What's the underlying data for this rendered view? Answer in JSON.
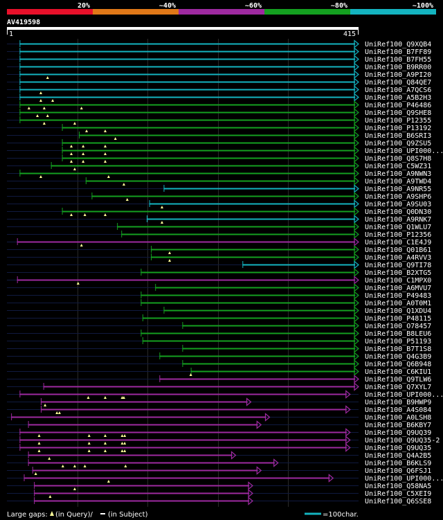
{
  "chart_data": {
    "type": "alignment-overview",
    "query": {
      "name": "AV419598",
      "start_label": "1",
      "end_label": "415",
      "length": 415
    },
    "identity_legend": [
      {
        "label": "20%",
        "color": "#e8102a"
      },
      {
        "label": "~40%",
        "color": "#e07818"
      },
      {
        "label": "~60%",
        "color": "#9e2aa0"
      },
      {
        "label": "~80%",
        "color": "#14a020"
      },
      {
        "label": "~100%",
        "color": "#14b4c0"
      }
    ],
    "hits": [
      {
        "name": "UniRef100_Q9XQB4",
        "start": 15,
        "end": 415,
        "band": 4,
        "gaps": []
      },
      {
        "name": "UniRef100_B7FF89",
        "start": 15,
        "end": 415,
        "band": 4,
        "gaps": []
      },
      {
        "name": "UniRef100_B7FH55",
        "start": 15,
        "end": 415,
        "band": 4,
        "gaps": []
      },
      {
        "name": "UniRef100_B9RR00",
        "start": 15,
        "end": 415,
        "band": 4,
        "gaps": []
      },
      {
        "name": "UniRef100_A9PI20",
        "start": 15,
        "end": 415,
        "band": 4,
        "gaps": [
          48
        ]
      },
      {
        "name": "UniRef100_Q84QE7",
        "start": 15,
        "end": 415,
        "band": 4,
        "gaps": []
      },
      {
        "name": "UniRef100_A7QCS6",
        "start": 15,
        "end": 415,
        "band": 4,
        "gaps": [
          40
        ]
      },
      {
        "name": "UniRef100_A5B2H3",
        "start": 15,
        "end": 415,
        "band": 4,
        "gaps": [
          40,
          54
        ]
      },
      {
        "name": "UniRef100_P46486",
        "start": 15,
        "end": 415,
        "band": 3,
        "gaps": [
          26,
          44,
          88
        ]
      },
      {
        "name": "UniRef100_Q9SHE8",
        "start": 15,
        "end": 415,
        "band": 3,
        "gaps": [
          36,
          48
        ]
      },
      {
        "name": "UniRef100_P12355",
        "start": 15,
        "end": 415,
        "band": 3,
        "gaps": [
          44,
          80
        ]
      },
      {
        "name": "UniRef100_P13192",
        "start": 65,
        "end": 415,
        "band": 3,
        "gaps": [
          94,
          116
        ]
      },
      {
        "name": "UniRef100_B6SRI3",
        "start": 85,
        "end": 415,
        "band": 3,
        "gaps": [
          128
        ]
      },
      {
        "name": "UniRef100_Q9ZSU5",
        "start": 65,
        "end": 415,
        "band": 3,
        "gaps": [
          76,
          90,
          116
        ]
      },
      {
        "name": "UniRef100_UPI000...",
        "start": 65,
        "end": 415,
        "band": 3,
        "gaps": [
          76,
          90,
          116
        ]
      },
      {
        "name": "UniRef100_Q8S7H8",
        "start": 65,
        "end": 415,
        "band": 3,
        "gaps": [
          76,
          90,
          116
        ]
      },
      {
        "name": "UniRef100_C5WZ31",
        "start": 52,
        "end": 415,
        "band": 3,
        "gaps": [
          80
        ]
      },
      {
        "name": "UniRef100_A9NWN3",
        "start": 15,
        "end": 415,
        "band": 3,
        "gaps": [
          40,
          120
        ]
      },
      {
        "name": "UniRef100_A9TWD4",
        "start": 93,
        "end": 415,
        "band": 3,
        "gaps": [
          138
        ]
      },
      {
        "name": "UniRef100_A9NR55",
        "start": 185,
        "end": 415,
        "band": 4,
        "gaps": []
      },
      {
        "name": "UniRef100_A9SHP6",
        "start": 100,
        "end": 415,
        "band": 3,
        "gaps": [
          142
        ]
      },
      {
        "name": "UniRef100_A9SU03",
        "start": 168,
        "end": 415,
        "band": 4,
        "gaps": [
          183
        ]
      },
      {
        "name": "UniRef100_Q0DN30",
        "start": 65,
        "end": 415,
        "band": 3,
        "gaps": [
          76,
          92,
          116
        ]
      },
      {
        "name": "UniRef100_A9RNK7",
        "start": 165,
        "end": 415,
        "band": 4,
        "gaps": [
          183
        ]
      },
      {
        "name": "UniRef100_Q1WLU7",
        "start": 130,
        "end": 415,
        "band": 3,
        "gaps": []
      },
      {
        "name": "UniRef100_P12356",
        "start": 135,
        "end": 415,
        "band": 3,
        "gaps": []
      },
      {
        "name": "UniRef100_C1E4J9",
        "start": 12,
        "end": 415,
        "band": 2,
        "gaps": [
          88
        ]
      },
      {
        "name": "UniRef100_Q01B61",
        "start": 170,
        "end": 415,
        "band": 3,
        "gaps": [
          192
        ]
      },
      {
        "name": "UniRef100_A4RVV3",
        "start": 170,
        "end": 415,
        "band": 3,
        "gaps": [
          192
        ]
      },
      {
        "name": "UniRef100_Q9TI78",
        "start": 278,
        "end": 415,
        "band": 4,
        "gaps": []
      },
      {
        "name": "UniRef100_B2XTG5",
        "start": 158,
        "end": 415,
        "band": 3,
        "gaps": []
      },
      {
        "name": "UniRef100_C1MPX0",
        "start": 12,
        "end": 415,
        "band": 2,
        "gaps": [
          84
        ]
      },
      {
        "name": "UniRef100_A6MVU7",
        "start": 175,
        "end": 415,
        "band": 3,
        "gaps": []
      },
      {
        "name": "UniRef100_P49483",
        "start": 158,
        "end": 415,
        "band": 3,
        "gaps": []
      },
      {
        "name": "UniRef100_A0T0M1",
        "start": 158,
        "end": 415,
        "band": 3,
        "gaps": []
      },
      {
        "name": "UniRef100_Q1XDU4",
        "start": 185,
        "end": 415,
        "band": 3,
        "gaps": []
      },
      {
        "name": "UniRef100_P48115",
        "start": 160,
        "end": 415,
        "band": 3,
        "gaps": []
      },
      {
        "name": "UniRef100_O78457",
        "start": 207,
        "end": 415,
        "band": 3,
        "gaps": []
      },
      {
        "name": "UniRef100_B8LEU6",
        "start": 158,
        "end": 415,
        "band": 3,
        "gaps": []
      },
      {
        "name": "UniRef100_P51193",
        "start": 160,
        "end": 415,
        "band": 3,
        "gaps": []
      },
      {
        "name": "UniRef100_B7T1S8",
        "start": 207,
        "end": 415,
        "band": 3,
        "gaps": []
      },
      {
        "name": "UniRef100_Q4G3B9",
        "start": 180,
        "end": 415,
        "band": 3,
        "gaps": []
      },
      {
        "name": "UniRef100_Q6B948",
        "start": 207,
        "end": 415,
        "band": 3,
        "gaps": []
      },
      {
        "name": "UniRef100_C6KIU1",
        "start": 217,
        "end": 415,
        "band": 3,
        "gaps": [
          217
        ]
      },
      {
        "name": "UniRef100_Q9TLW6",
        "start": 180,
        "end": 415,
        "band": 2,
        "gaps": []
      },
      {
        "name": "UniRef100_Q7XYL7",
        "start": 43,
        "end": 415,
        "band": 2,
        "gaps": []
      },
      {
        "name": "UniRef100_UPI000...",
        "start": 15,
        "end": 405,
        "band": 2,
        "gaps": [
          96,
          116,
          136,
          138
        ]
      },
      {
        "name": "UniRef100_B9HWP9",
        "start": 40,
        "end": 288,
        "band": 2,
        "gaps": [
          45
        ]
      },
      {
        "name": "UniRef100_A4S084",
        "start": 40,
        "end": 405,
        "band": 2,
        "gaps": [
          59,
          62
        ]
      },
      {
        "name": "UniRef100_A0LSH8",
        "start": 5,
        "end": 310,
        "band": 2,
        "gaps": []
      },
      {
        "name": "UniRef100_B6KBY7",
        "start": 25,
        "end": 300,
        "band": 2,
        "gaps": []
      },
      {
        "name": "UniRef100_Q9UQ39",
        "start": 15,
        "end": 405,
        "band": 2,
        "gaps": [
          38,
          97,
          116,
          136,
          139
        ]
      },
      {
        "name": "UniRef100_Q9UQ35-2",
        "start": 15,
        "end": 405,
        "band": 2,
        "gaps": [
          38,
          97,
          116,
          136,
          139
        ]
      },
      {
        "name": "UniRef100_Q9UQ35",
        "start": 15,
        "end": 405,
        "band": 2,
        "gaps": [
          38,
          97,
          116,
          136,
          139
        ]
      },
      {
        "name": "UniRef100_Q4A2B5",
        "start": 25,
        "end": 270,
        "band": 2,
        "gaps": [
          50
        ]
      },
      {
        "name": "UniRef100_B6KLS9",
        "start": 25,
        "end": 320,
        "band": 2,
        "gaps": [
          66,
          80,
          92,
          140
        ]
      },
      {
        "name": "UniRef100_Q6FSJ1",
        "start": 30,
        "end": 300,
        "band": 2,
        "gaps": [
          34
        ]
      },
      {
        "name": "UniRef100_UPI000...",
        "start": 20,
        "end": 385,
        "band": 2,
        "gaps": [
          120
        ]
      },
      {
        "name": "UniRef100_Q58NA5",
        "start": 32,
        "end": 290,
        "band": 2,
        "gaps": [
          80
        ]
      },
      {
        "name": "UniRef100_C5XEI9",
        "start": 32,
        "end": 290,
        "band": 2,
        "gaps": [
          51
        ]
      },
      {
        "name": "UniRef100_Q6SSE8",
        "start": 32,
        "end": 290,
        "band": 2,
        "gaps": []
      }
    ],
    "footer": {
      "gaps_label": "Large gaps:",
      "query_gap_label": "(in Query)/",
      "subject_gap_label": "(in Subject)",
      "scale_label": "=100char."
    }
  }
}
